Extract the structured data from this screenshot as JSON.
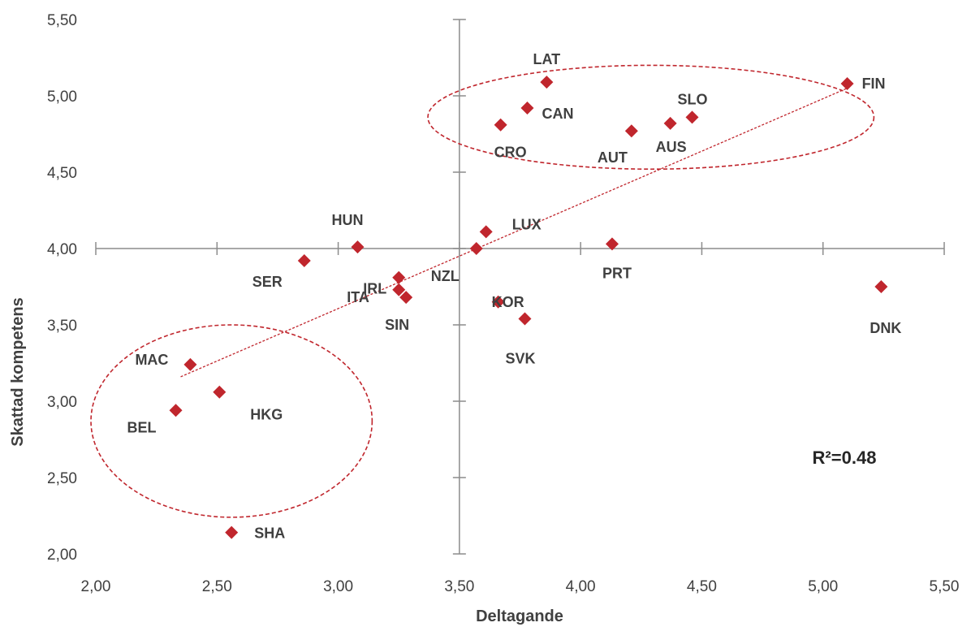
{
  "chart_data": {
    "type": "scatter",
    "title": "",
    "xlabel": "Deltagande",
    "ylabel": "Skattad kompetens",
    "xlim": [
      2.0,
      5.5
    ],
    "ylim": [
      2.0,
      5.5
    ],
    "x_ticks": [
      "2,00",
      "2,50",
      "3,00",
      "3,50",
      "4,00",
      "4,50",
      "5,00",
      "5,50"
    ],
    "y_ticks": [
      "2,00",
      "2,50",
      "3,00",
      "3,50",
      "4,00",
      "4,50",
      "5,00",
      "5,50"
    ],
    "axes_cross": {
      "x": 3.5,
      "y": 4.0
    },
    "grid": false,
    "marker_color": "#c0262d",
    "trendline_color": "#c0262d",
    "annotation": "R²=0.48",
    "points": [
      {
        "label": "LAT",
        "x": 3.86,
        "y": 5.09
      },
      {
        "label": "FIN",
        "x": 5.1,
        "y": 5.08
      },
      {
        "label": "CAN",
        "x": 3.78,
        "y": 4.92
      },
      {
        "label": "SLO",
        "x": 4.46,
        "y": 4.86
      },
      {
        "label": "AUS",
        "x": 4.37,
        "y": 4.82
      },
      {
        "label": "CRO",
        "x": 3.67,
        "y": 4.81
      },
      {
        "label": "AUT",
        "x": 4.21,
        "y": 4.77
      },
      {
        "label": "LUX",
        "x": 3.61,
        "y": 4.11
      },
      {
        "label": "PRT",
        "x": 4.13,
        "y": 4.03
      },
      {
        "label": "HUN",
        "x": 3.08,
        "y": 4.01
      },
      {
        "label": "NZL",
        "x": 3.57,
        "y": 4.0
      },
      {
        "label": "SER",
        "x": 2.86,
        "y": 3.92
      },
      {
        "label": "IRL",
        "x": 3.25,
        "y": 3.81
      },
      {
        "label": "DNK",
        "x": 5.24,
        "y": 3.75
      },
      {
        "label": "ITA",
        "x": 3.25,
        "y": 3.73
      },
      {
        "label": "SIN",
        "x": 3.28,
        "y": 3.68
      },
      {
        "label": "KOR",
        "x": 3.66,
        "y": 3.65
      },
      {
        "label": "SVK",
        "x": 3.77,
        "y": 3.54
      },
      {
        "label": "MAC",
        "x": 2.39,
        "y": 3.24
      },
      {
        "label": "HKG",
        "x": 2.51,
        "y": 3.06
      },
      {
        "label": "BEL",
        "x": 2.33,
        "y": 2.94
      },
      {
        "label": "SHA",
        "x": 2.56,
        "y": 2.14
      }
    ],
    "trendline": {
      "from": [
        2.35,
        3.16
      ],
      "to": [
        5.1,
        5.05
      ]
    },
    "highlight_ellipses": [
      {
        "cx": 4.29,
        "cy": 4.86,
        "rx": 0.92,
        "ry": 0.34
      },
      {
        "cx": 2.56,
        "cy": 2.87,
        "rx": 0.58,
        "ry": 0.63
      }
    ]
  }
}
